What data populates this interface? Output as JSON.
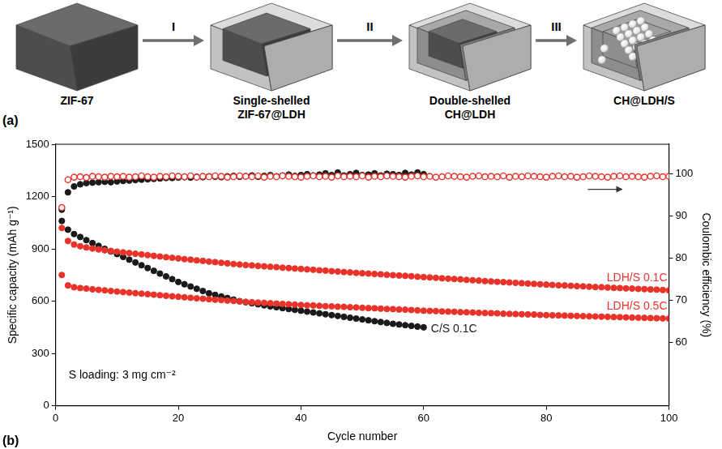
{
  "diagram": {
    "panel_label": "(a)",
    "stages": [
      "ZIF-67",
      "Single-shelled ZIF-67@LDH",
      "Double-shelled CH@LDH",
      "CH@LDH/S"
    ],
    "steps": [
      "I",
      "II",
      "III"
    ]
  },
  "chart_data": {
    "type": "scatter",
    "panel_label": "(b)",
    "x_label": "Cycle number",
    "y_label": "Specific capacity (mAh g⁻¹)",
    "y2_label": "Coulombic efficiency (%)",
    "annotations": [
      "S loading: 3 mg cm⁻²"
    ],
    "xlim": [
      0,
      100
    ],
    "xticks": [
      0,
      20,
      40,
      60,
      80,
      100
    ],
    "ylim": [
      0,
      1500
    ],
    "yticks": [
      0,
      300,
      600,
      900,
      1200,
      1500
    ],
    "y2lim": [
      45,
      107
    ],
    "y2ticks": [
      60,
      70,
      80,
      90,
      100
    ],
    "grid": false,
    "x": [
      1,
      2,
      3,
      4,
      5,
      6,
      7,
      8,
      9,
      10,
      11,
      12,
      13,
      14,
      15,
      16,
      17,
      18,
      19,
      20,
      21,
      22,
      23,
      24,
      25,
      26,
      27,
      28,
      29,
      30,
      31,
      32,
      33,
      34,
      35,
      36,
      37,
      38,
      39,
      40,
      41,
      42,
      43,
      44,
      45,
      46,
      47,
      48,
      49,
      50,
      51,
      52,
      53,
      54,
      55,
      56,
      57,
      58,
      59,
      60,
      61,
      62,
      63,
      64,
      65,
      66,
      67,
      68,
      69,
      70,
      71,
      72,
      73,
      74,
      75,
      76,
      77,
      78,
      79,
      80,
      81,
      82,
      83,
      84,
      85,
      86,
      87,
      88,
      89,
      90,
      91,
      92,
      93,
      94,
      95,
      96,
      97,
      98,
      99,
      100
    ],
    "series": [
      {
        "name": "LDH/S 0.1C",
        "color": "#e8332b",
        "marker": "circle",
        "line_style": "none",
        "values": [
          1020,
          945,
          925,
          915,
          908,
          902,
          897,
          892,
          888,
          884,
          880,
          876,
          872,
          868,
          864,
          860,
          856,
          852,
          849,
          845,
          841,
          838,
          834,
          831,
          827,
          824,
          820,
          817,
          813,
          810,
          807,
          805,
          802,
          800,
          797,
          795,
          792,
          790,
          787,
          785,
          782,
          780,
          777,
          775,
          772,
          770,
          767,
          765,
          762,
          760,
          758,
          756,
          754,
          751,
          749,
          747,
          745,
          743,
          740,
          738,
          736,
          734,
          731,
          729,
          727,
          725,
          722,
          720,
          718,
          715,
          713,
          711,
          709,
          707,
          705,
          703,
          701,
          699,
          697,
          695,
          693,
          691,
          690,
          688,
          686,
          685,
          683,
          681,
          680,
          678,
          676,
          675,
          673,
          672,
          670,
          669,
          667,
          666,
          664,
          662
        ]
      },
      {
        "name": "LDH/S 0.5C",
        "color": "#e8332b",
        "marker": "circle",
        "line_style": "none",
        "values": [
          750,
          690,
          680,
          675,
          672,
          668,
          665,
          662,
          658,
          655,
          652,
          649,
          646,
          643,
          640,
          637,
          634,
          631,
          628,
          625,
          622,
          619,
          616,
          614,
          611,
          608,
          606,
          603,
          601,
          598,
          596,
          594,
          592,
          590,
          588,
          586,
          584,
          582,
          580,
          578,
          576,
          575,
          573,
          571,
          570,
          568,
          567,
          565,
          564,
          562,
          560,
          559,
          557,
          555,
          554,
          552,
          551,
          549,
          547,
          545,
          544,
          543,
          541,
          540,
          539,
          537,
          536,
          535,
          533,
          532,
          531,
          530,
          528,
          527,
          526,
          525,
          524,
          523,
          521,
          520,
          519,
          518,
          517,
          516,
          515,
          514,
          513,
          512,
          511,
          510,
          509,
          508,
          507,
          506,
          505,
          504,
          503,
          502,
          501,
          500
        ]
      },
      {
        "name": "C/S 0.1C",
        "color": "#1a1a1a",
        "marker": "circle",
        "line_style": "none",
        "values": [
          1060,
          1010,
          985,
          968,
          950,
          933,
          917,
          900,
          885,
          870,
          854,
          838,
          822,
          806,
          790,
          774,
          758,
          742,
          726,
          710,
          697,
          684,
          671,
          658,
          645,
          636,
          627,
          618,
          609,
          600,
          594,
          588,
          582,
          576,
          570,
          565,
          560,
          555,
          550,
          545,
          540,
          535,
          530,
          525,
          520,
          515,
          510,
          505,
          500,
          495,
          490,
          485,
          480,
          475,
          470,
          466,
          462,
          458,
          454,
          450,
          null,
          null,
          null,
          null,
          null,
          null,
          null,
          null,
          null,
          null,
          null,
          null,
          null,
          null,
          null,
          null,
          null,
          null,
          null,
          null,
          null,
          null,
          null,
          null,
          null,
          null,
          null,
          null,
          null,
          null,
          null,
          null,
          null,
          null,
          null,
          null,
          null,
          null,
          null,
          null
        ]
      },
      {
        "name": "LDH/S 0.1C",
        "color": "#e8332b",
        "marker": "open_circle",
        "line_style": "none",
        "axis": "y2",
        "values": [
          92.0,
          98.6,
          99.2,
          99.3,
          99.1,
          99.4,
          99.3,
          99.2,
          99.4,
          99.3,
          99.4,
          99.2,
          99.3,
          99.5,
          99.3,
          99.2,
          99.4,
          99.3,
          99.5,
          99.4,
          99.3,
          99.5,
          99.2,
          99.4,
          99.3,
          99.5,
          99.4,
          99.2,
          99.3,
          99.5,
          99.4,
          99.3,
          99.5,
          99.2,
          99.4,
          99.3,
          99.5,
          99.4,
          99.3,
          99.2,
          99.4,
          99.5,
          99.3,
          99.4,
          99.2,
          99.5,
          99.3,
          99.4,
          99.3,
          99.5,
          99.2,
          99.4,
          99.3,
          99.5,
          99.4,
          99.3,
          99.2,
          99.4,
          99.5,
          99.3,
          99.4,
          99.2,
          99.3,
          99.5,
          99.4,
          99.3,
          99.2,
          99.4,
          99.5,
          99.3,
          99.4,
          99.3,
          99.5,
          99.2,
          99.4,
          99.3,
          99.5,
          99.4,
          99.3,
          99.2,
          99.4,
          99.5,
          99.3,
          99.4,
          99.2,
          99.3,
          99.5,
          99.4,
          99.3,
          99.2,
          99.4,
          99.5,
          99.3,
          99.4,
          99.3,
          99.2,
          99.4,
          99.5,
          99.3,
          99.4
        ]
      },
      {
        "name": "C/S 0.1C",
        "color": "#1a1a1a",
        "marker": "circle",
        "line_style": "none",
        "axis": "y2",
        "values": [
          91.5,
          95.6,
          97.0,
          97.5,
          97.8,
          97.9,
          98.0,
          98.1,
          98.0,
          98.2,
          98.3,
          98.4,
          98.5,
          98.6,
          98.7,
          98.8,
          98.9,
          99.0,
          99.0,
          99.1,
          99.2,
          99.1,
          99.3,
          99.2,
          99.4,
          99.3,
          99.2,
          99.4,
          99.5,
          99.3,
          99.4,
          99.6,
          99.3,
          99.5,
          99.7,
          99.4,
          99.6,
          99.8,
          99.5,
          99.7,
          99.9,
          99.6,
          99.8,
          100.1,
          99.7,
          100.3,
          99.6,
          99.9,
          100.2,
          99.7,
          99.8,
          100.1,
          99.6,
          100.0,
          99.9,
          99.7,
          100.2,
          99.8,
          100.3,
          99.9,
          null,
          null,
          null,
          null,
          null,
          null,
          null,
          null,
          null,
          null,
          null,
          null,
          null,
          null,
          null,
          null,
          null,
          null,
          null,
          null,
          null,
          null,
          null,
          null,
          null,
          null,
          null,
          null,
          null,
          null,
          null,
          null,
          null,
          null,
          null,
          null,
          null,
          null,
          null,
          null
        ]
      }
    ]
  }
}
